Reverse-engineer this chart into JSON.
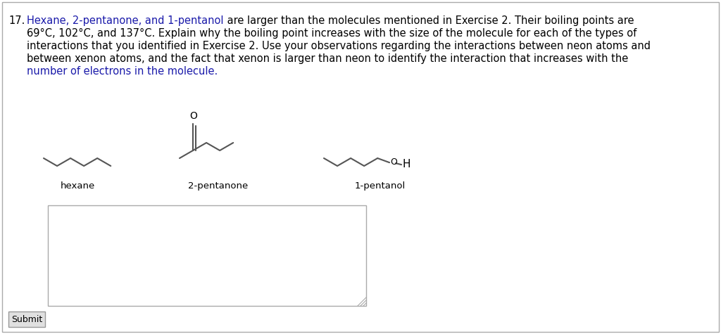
{
  "background_color": "#ffffff",
  "border_color": "#aaaaaa",
  "question_number": "17.",
  "text_color": "#000000",
  "highlight_color": "#1a1aaa",
  "font_size_text": 10.5,
  "font_size_label": 9.5,
  "molecule_labels": [
    "hexane",
    "2-pentanone",
    "1-pentanol"
  ],
  "submit_label": "Submit",
  "line_texts": [
    [
      [
        "Hexane, 2-pentanone, and 1-pentanol",
        "blue"
      ],
      [
        " are larger than the molecules mentioned in Exercise 2. Their boiling points are",
        "black"
      ]
    ],
    [
      [
        "69°C, 102°C, and 137°C. Explain why the boiling point increases with the size of the molecule for each of the types of",
        "black"
      ]
    ],
    [
      [
        "interactions that you identified in Exercise 2. Use your observations regarding the interactions between neon atoms and",
        "black"
      ]
    ],
    [
      [
        "between xenon atoms, and the fact that xenon is larger than neon to identify the interaction that increases with the",
        "black"
      ]
    ],
    [
      [
        "number of electrons in the molecule.",
        "blue"
      ]
    ]
  ]
}
